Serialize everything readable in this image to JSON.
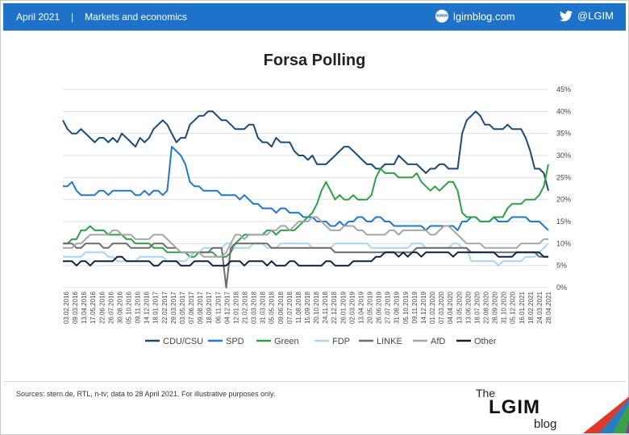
{
  "header": {
    "date": "April 2021",
    "separator": "|",
    "section": "Markets and economics",
    "site": "lgimblog.com",
    "site_icon": "globe-icon",
    "handle": "@LGIM",
    "handle_icon": "twitter-icon",
    "bar_color": "#1e73c8"
  },
  "footer": {
    "sources": "Sources: stern.de, RTL, n-tv;  data to 28 April 2021. For illustrative purposes only.",
    "brand_the": "The",
    "brand_name": "LGIM",
    "brand_blog": "blog"
  },
  "chart_data": {
    "type": "line",
    "title": "Forsa Polling",
    "ylim": [
      0,
      45
    ],
    "y_ticks": [
      "0%",
      "5%",
      "10%",
      "15%",
      "20%",
      "25%",
      "30%",
      "35%",
      "40%",
      "45%"
    ],
    "y_axis_side": "right",
    "grid": true,
    "legend_position": "bottom",
    "x_tick_labels": [
      "03.02.2016",
      "09.03.2016",
      "13.04.2016",
      "17.05.2016",
      "22.06.2016",
      "26.07.2016",
      "30.08.2016",
      "05.10.2016",
      "09.11.2016",
      "14.12.2016",
      "18.01.2017",
      "22.02.2017",
      "29.03.2017",
      "03.05.2017",
      "07.06.2017",
      "09.08.2017",
      "18.09.2017",
      "06.11.2017",
      "04.12.2017",
      "12.01.2018",
      "21.02.2018",
      "03.03.2018",
      "31.03.2018",
      "05.05.2018",
      "09.06.2018",
      "07.07.2018",
      "11.08.2018",
      "15.09.2018",
      "20.10.2018",
      "24.11.2018",
      "22.12.2018",
      "26.01.2019",
      "02.03.2019",
      "13.04.2019",
      "20.05.2019",
      "26.06.2019",
      "27.07.2019",
      "31.08.2019",
      "05.10.2019",
      "09.11.2019",
      "14.12.2019",
      "01.02.2020",
      "07.03.2020",
      "04.04.2020",
      "13.05.2020",
      "13.06.2020",
      "18.07.2020",
      "22.08.2020",
      "28.09.2020",
      "31.10.2020",
      "05.12.2020",
      "16.01.2021",
      "18.02.2021",
      "24.03.2021",
      "28.04.2021"
    ],
    "series": [
      {
        "name": "CDU/CSU",
        "color": "#1a4a7a",
        "values": [
          38,
          36,
          35,
          35,
          36,
          35,
          34,
          33,
          34,
          34,
          33,
          34,
          33,
          35,
          34,
          33,
          32,
          34,
          33,
          34,
          36,
          37,
          38,
          37,
          35,
          33,
          34,
          34,
          37,
          38,
          39,
          39,
          40,
          40,
          39,
          38,
          38,
          37,
          36,
          36,
          36,
          37,
          37,
          34,
          33,
          33,
          32,
          34,
          33,
          33,
          33,
          31,
          30,
          30,
          29,
          30,
          28,
          28,
          28,
          29,
          30,
          31,
          32,
          32,
          31,
          30,
          29,
          28,
          28,
          27,
          27,
          28,
          28,
          28,
          30,
          29,
          28,
          28,
          28,
          27,
          26,
          27,
          27,
          28,
          28,
          27,
          27,
          27,
          35,
          38,
          39,
          40,
          39,
          37,
          37,
          36,
          36,
          36,
          37,
          36,
          36,
          36,
          34,
          31,
          27,
          27,
          26,
          22
        ]
      },
      {
        "name": "SPD",
        "color": "#1f78c8",
        "values": [
          23,
          23,
          24,
          22,
          21,
          21,
          21,
          21,
          22,
          22,
          21,
          22,
          22,
          22,
          22,
          22,
          21,
          21,
          22,
          21,
          22,
          22,
          21,
          22,
          32,
          31,
          30,
          28,
          24,
          23,
          23,
          22,
          22,
          22,
          22,
          21,
          21,
          21,
          21,
          20,
          21,
          20,
          19,
          19,
          18,
          18,
          18,
          17,
          18,
          18,
          17,
          17,
          17,
          16,
          16,
          16,
          15,
          15,
          15,
          14,
          14,
          15,
          14,
          15,
          15,
          16,
          16,
          15,
          15,
          16,
          16,
          15,
          15,
          14,
          14,
          14,
          14,
          14,
          14,
          14,
          13,
          14,
          14,
          14,
          14,
          14,
          14,
          13,
          15,
          15,
          16,
          16,
          15,
          15,
          15,
          16,
          15,
          15,
          15,
          16,
          16,
          16,
          16,
          15,
          15,
          15,
          14,
          13
        ]
      },
      {
        "name": "Green",
        "color": "#2ea043",
        "values": [
          10,
          10,
          11,
          11,
          13,
          13,
          14,
          13,
          13,
          13,
          12,
          12,
          12,
          12,
          11,
          11,
          10,
          10,
          10,
          10,
          9,
          9,
          9,
          8,
          8,
          8,
          8,
          8,
          7,
          7,
          8,
          8,
          8,
          8,
          7,
          7,
          7,
          8,
          10,
          11,
          12,
          12,
          12,
          12,
          12,
          13,
          13,
          12,
          13,
          13,
          13,
          13,
          14,
          15,
          16,
          17,
          19,
          22,
          24,
          22,
          20,
          21,
          20,
          20,
          21,
          20,
          20,
          20,
          21,
          25,
          27,
          26,
          26,
          26,
          25,
          25,
          25,
          25,
          26,
          24,
          23,
          22,
          23,
          22,
          23,
          24,
          24,
          22,
          17,
          16,
          16,
          16,
          15,
          15,
          15,
          16,
          16,
          16,
          18,
          19,
          19,
          19,
          20,
          20,
          20,
          21,
          23,
          28
        ]
      },
      {
        "name": "FDP",
        "color": "#a9d4f2",
        "values": [
          7,
          7,
          7,
          7,
          7,
          8,
          8,
          8,
          8,
          8,
          7,
          7,
          6,
          6,
          6,
          6,
          6,
          7,
          7,
          7,
          7,
          7,
          7,
          6,
          6,
          6,
          6,
          6,
          7,
          8,
          8,
          9,
          9,
          9,
          9,
          9,
          10,
          10,
          9,
          9,
          9,
          9,
          10,
          10,
          10,
          9,
          9,
          9,
          10,
          10,
          10,
          10,
          10,
          10,
          10,
          9,
          9,
          9,
          9,
          9,
          10,
          10,
          10,
          10,
          10,
          10,
          10,
          10,
          9,
          9,
          9,
          9,
          9,
          9,
          9,
          9,
          9,
          10,
          10,
          10,
          9,
          9,
          9,
          9,
          9,
          9,
          10,
          10,
          9,
          9,
          6,
          6,
          6,
          6,
          6,
          6,
          5,
          6,
          6,
          6,
          6,
          6,
          7,
          7,
          7,
          8,
          9,
          10
        ]
      },
      {
        "name": "LINKE",
        "color": "#6b6b6b",
        "values": [
          10,
          10,
          10,
          9,
          9,
          10,
          10,
          10,
          10,
          9,
          9,
          10,
          10,
          10,
          10,
          9,
          9,
          9,
          9,
          9,
          10,
          10,
          10,
          9,
          9,
          9,
          8,
          8,
          8,
          8,
          8,
          8,
          8,
          9,
          9,
          9,
          0,
          9,
          10,
          10,
          10,
          10,
          10,
          10,
          10,
          10,
          9,
          9,
          9,
          9,
          9,
          9,
          9,
          9,
          9,
          9,
          9,
          9,
          9,
          9,
          8,
          8,
          8,
          8,
          8,
          8,
          8,
          8,
          8,
          8,
          8,
          8,
          8,
          8,
          8,
          8,
          8,
          8,
          9,
          9,
          9,
          9,
          9,
          9,
          9,
          9,
          9,
          9,
          9,
          9,
          8,
          8,
          8,
          8,
          8,
          8,
          8,
          8,
          8,
          8,
          8,
          8,
          8,
          8,
          8,
          7,
          7,
          7
        ]
      },
      {
        "name": "AfD",
        "color": "#a6a6a6",
        "values": [
          9,
          9,
          9,
          10,
          10,
          11,
          12,
          12,
          12,
          12,
          12,
          13,
          13,
          12,
          12,
          12,
          11,
          11,
          11,
          11,
          12,
          12,
          12,
          11,
          10,
          9,
          8,
          8,
          8,
          8,
          8,
          7,
          7,
          7,
          7,
          7,
          8,
          10,
          12,
          12,
          11,
          12,
          12,
          12,
          12,
          12,
          13,
          13,
          14,
          14,
          13,
          14,
          15,
          15,
          15,
          16,
          16,
          15,
          14,
          13,
          13,
          13,
          14,
          14,
          14,
          13,
          13,
          12,
          12,
          12,
          12,
          12,
          13,
          13,
          12,
          13,
          13,
          13,
          13,
          13,
          13,
          12,
          12,
          13,
          14,
          14,
          13,
          12,
          11,
          10,
          10,
          10,
          10,
          9,
          9,
          9,
          9,
          9,
          9,
          9,
          9,
          10,
          10,
          10,
          10,
          10,
          11,
          11
        ]
      },
      {
        "name": "Other",
        "color": "#0d2240",
        "values": [
          6,
          6,
          6,
          5,
          6,
          6,
          5,
          6,
          6,
          6,
          6,
          6,
          7,
          7,
          6,
          6,
          6,
          6,
          6,
          6,
          5,
          5,
          6,
          6,
          6,
          6,
          5,
          5,
          5,
          6,
          6,
          6,
          6,
          5,
          5,
          5,
          5,
          6,
          6,
          6,
          5,
          6,
          6,
          6,
          6,
          5,
          6,
          5,
          5,
          5,
          6,
          6,
          5,
          5,
          5,
          5,
          5,
          5,
          6,
          6,
          5,
          5,
          5,
          5,
          6,
          6,
          6,
          6,
          6,
          7,
          7,
          8,
          8,
          8,
          7,
          8,
          7,
          8,
          8,
          7,
          8,
          8,
          8,
          8,
          8,
          8,
          7,
          8,
          8,
          8,
          8,
          8,
          8,
          8,
          8,
          8,
          7,
          7,
          7,
          7,
          8,
          8,
          8,
          8,
          8,
          8,
          7,
          7
        ]
      }
    ]
  }
}
